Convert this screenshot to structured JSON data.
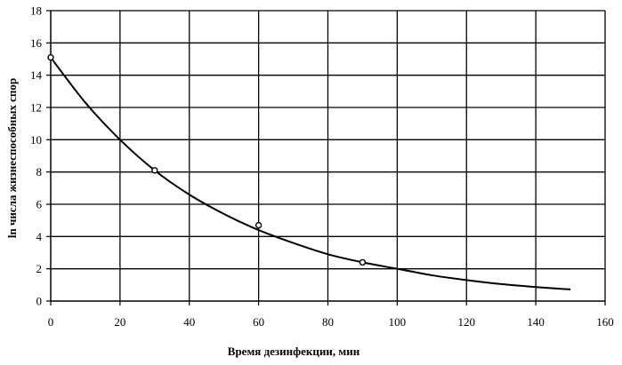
{
  "chart_data": {
    "type": "scatter",
    "xlabel": "Время дезинфекции, мин",
    "ylabel": "ln числа жизнеспособных спор",
    "xlim": [
      0,
      160
    ],
    "ylim": [
      0,
      18
    ],
    "x_ticks": [
      0,
      20,
      40,
      60,
      80,
      100,
      120,
      140,
      160
    ],
    "y_ticks": [
      0,
      2,
      4,
      6,
      8,
      10,
      12,
      14,
      16,
      18
    ],
    "grid": true,
    "legend": "none",
    "series": [
      {
        "kind": "points",
        "marker": "open-circle",
        "x": [
          0,
          30,
          60,
          90
        ],
        "y": [
          15.1,
          8.1,
          4.7,
          2.4
        ]
      },
      {
        "kind": "trend-line",
        "x": [
          0,
          10,
          20,
          30,
          40,
          50,
          60,
          70,
          80,
          90,
          100,
          110,
          120,
          130,
          140,
          150
        ],
        "y": [
          15.1,
          12.3,
          10.0,
          8.1,
          6.6,
          5.4,
          4.4,
          3.6,
          2.9,
          2.4,
          2.0,
          1.6,
          1.3,
          1.05,
          0.87,
          0.72
        ]
      }
    ]
  }
}
